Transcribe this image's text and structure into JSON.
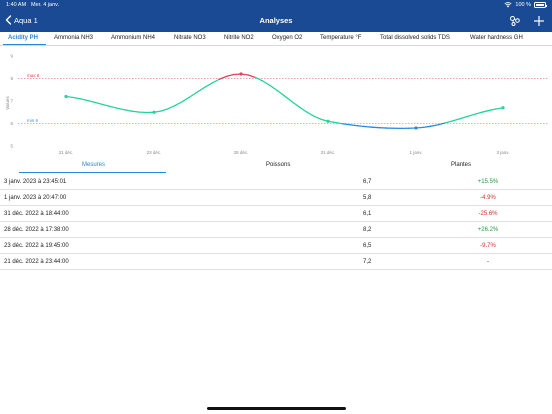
{
  "status": {
    "time": "1:40 AM",
    "date": "Mer. 4 janv.",
    "battery": "100 %"
  },
  "nav": {
    "back_label": "Aqua 1",
    "title": "Analyses"
  },
  "tabs": [
    {
      "label": "Acidity PH",
      "active": true
    },
    {
      "label": "Ammonia NH3",
      "active": false
    },
    {
      "label": "Ammonium NH4",
      "active": false
    },
    {
      "label": "Nitrate NO3",
      "active": false
    },
    {
      "label": "Nitrite NO2",
      "active": false
    },
    {
      "label": "Oxygen O2",
      "active": false
    },
    {
      "label": "Temperature °F",
      "active": false
    },
    {
      "label": "Total dissolved solids TDS",
      "active": false
    },
    {
      "label": "Water hardness GH",
      "active": false
    }
  ],
  "chart_data": {
    "type": "line",
    "ylabel": "Values",
    "ylim": [
      5,
      9
    ],
    "yticks": [
      "5",
      "6",
      "7",
      "8",
      "9"
    ],
    "x": [
      "21 déc.",
      "23 déc.",
      "28 déc.",
      "31 déc.",
      "1 janv.",
      "3 janv."
    ],
    "values": [
      7.2,
      6.5,
      8.2,
      6.1,
      5.8,
      6.7
    ],
    "ref_lines": [
      {
        "label": "max 8",
        "value": 8,
        "color": "#e0435a"
      },
      {
        "label": "min 6",
        "value": 6,
        "color": "#3a8fd8"
      }
    ],
    "colors": {
      "in_range": "#25d49a",
      "above": "#e0435a",
      "below": "#2a8ae0"
    }
  },
  "segments": [
    {
      "label": "Mesures",
      "active": true
    },
    {
      "label": "Poissons",
      "active": false
    },
    {
      "label": "Plantes",
      "active": false
    }
  ],
  "rows": [
    {
      "date": "3 janv. 2023 à 23:45:01",
      "value": "6,7",
      "change": "+15.5%",
      "trend": "pos"
    },
    {
      "date": "1 janv. 2023 à 20:47:00",
      "value": "5,8",
      "change": "-4.9%",
      "trend": "neg"
    },
    {
      "date": "31 déc. 2022 à 18:44:00",
      "value": "6,1",
      "change": "-25.6%",
      "trend": "neg"
    },
    {
      "date": "28 déc. 2022 à 17:38:00",
      "value": "8,2",
      "change": "+26.2%",
      "trend": "pos"
    },
    {
      "date": "23 déc. 2022 à 19:45:00",
      "value": "6,5",
      "change": "-9.7%",
      "trend": "neg"
    },
    {
      "date": "21 déc. 2022 à 23:44:00",
      "value": "7,2",
      "change": "-",
      "trend": "neu"
    }
  ]
}
